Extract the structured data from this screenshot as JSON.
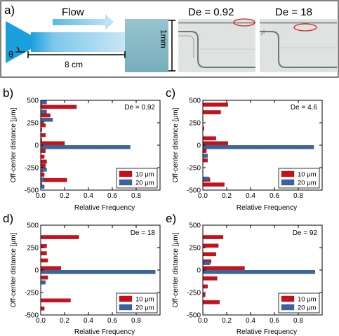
{
  "panel_a": {
    "label": "a)",
    "flow_label": "Flow",
    "angle_label": "θ",
    "length_label": "8 cm",
    "width_label": "1mm",
    "micro_titles": [
      "De = 0.92",
      "De = 18"
    ]
  },
  "colors": {
    "red": "#c8101a",
    "blue": "#2f5b94",
    "channel_light": "#c9e6f6",
    "channel_mid": "#7fc8ec",
    "channel_dark": "#1aa0dc",
    "expansion": "#86b7c4",
    "arrow": "#6ec3e9"
  },
  "legend": {
    "entries": [
      "10 μm",
      "20 μm"
    ]
  },
  "chart_data": [
    {
      "type": "bar",
      "orientation": "horizontal",
      "panel_label": "b)",
      "annotation": "De = 0.92",
      "xlabel": "Relative Frequency",
      "ylabel": "Off-center distance [μm]",
      "xlim": [
        0,
        1.0
      ],
      "ylim": [
        -500,
        500
      ],
      "xticks": [
        0,
        0.2,
        0.4,
        0.6,
        0.8
      ],
      "xtick_labels": [
        "0.0",
        "0.2",
        "0.4",
        "0.6",
        "0.8"
      ],
      "yticks": [
        500,
        250,
        0,
        -250,
        -500
      ],
      "ytick_labels": [
        "500",
        "250",
        "0",
        "-250",
        "-500"
      ],
      "legend_position": "bottom-right",
      "series": [
        {
          "name": "10 μm",
          "y": [
            450,
            405,
            350,
            310,
            255,
            200,
            150,
            90,
            35,
            0,
            -85,
            -150,
            -205,
            -250,
            -300,
            -350,
            -410,
            -460
          ],
          "values": [
            0.01,
            0.3,
            0.04,
            0.08,
            0.03,
            0.04,
            0.01,
            0.04,
            0.01,
            0.2,
            0.04,
            0.03,
            0.05,
            0.04,
            0.02,
            0.03,
            0.22,
            0.01
          ]
        },
        {
          "name": "20 μm",
          "y": [
            500,
            395,
            305,
            0,
            -250,
            -360,
            -440
          ],
          "values": [
            0.05,
            0.05,
            0.1,
            0.75,
            0.05,
            0.03,
            0.03
          ]
        }
      ]
    },
    {
      "type": "bar",
      "orientation": "horizontal",
      "panel_label": "c)",
      "annotation": "De = 4.6",
      "xlabel": "Relative Frequency",
      "ylabel": "Off-center distance [μm]",
      "xlim": [
        0,
        1.0
      ],
      "ylim": [
        -500,
        500
      ],
      "xticks": [
        0,
        0.2,
        0.4,
        0.6,
        0.8
      ],
      "xtick_labels": [
        "0.0",
        "0.2",
        "0.4",
        "0.6",
        "0.8"
      ],
      "yticks": [
        500,
        250,
        0,
        -250,
        -500
      ],
      "ytick_labels": [
        "500",
        "250",
        "0",
        "-250",
        "-500"
      ],
      "legend_position": "bottom-right",
      "series": [
        {
          "name": "10 μm",
          "y": [
            430,
            345,
            165,
            55,
            0,
            -85,
            -190,
            -405,
            -460
          ],
          "values": [
            0.21,
            0.15,
            0.01,
            0.11,
            0.21,
            0.03,
            0.04,
            0.06,
            0.18
          ]
        },
        {
          "name": "20 μm",
          "y": [
            0,
            -95,
            -350
          ],
          "values": [
            0.93,
            0.04,
            0.05
          ]
        }
      ]
    },
    {
      "type": "bar",
      "orientation": "horizontal",
      "panel_label": "d)",
      "annotation": "De = 18",
      "xlabel": "Relative Frequency",
      "ylabel": "Off-center distance [μm]",
      "xlim": [
        0,
        1.0
      ],
      "ylim": [
        -500,
        500
      ],
      "xticks": [
        0,
        0.2,
        0.4,
        0.6,
        0.8
      ],
      "xtick_labels": [
        "0.0",
        "0.2",
        "0.4",
        "0.6",
        "0.8"
      ],
      "yticks": [
        500,
        250,
        0,
        -250,
        -500
      ],
      "ytick_labels": [
        "500",
        "250",
        "0",
        "-250",
        "-500"
      ],
      "legend_position": "bottom-right",
      "series": [
        {
          "name": "10 μm",
          "y": [
            345,
            245,
            165,
            85,
            0,
            -105,
            -160,
            -360,
            -450
          ],
          "values": [
            0.32,
            0.05,
            0.05,
            0.06,
            0.17,
            0.06,
            0.02,
            0.25,
            0.03
          ]
        },
        {
          "name": "20 μm",
          "y": [
            0,
            -115
          ],
          "values": [
            0.96,
            0.04
          ]
        }
      ]
    },
    {
      "type": "bar",
      "orientation": "horizontal",
      "panel_label": "e)",
      "annotation": "De = 92",
      "xlabel": "Relative Frequency",
      "ylabel": "Off-center distance [μm]",
      "xlim": [
        0,
        1.0
      ],
      "ylim": [
        -500,
        500
      ],
      "xticks": [
        0,
        0.2,
        0.4,
        0.6,
        0.8
      ],
      "xtick_labels": [
        "0.0",
        "0.2",
        "0.4",
        "0.6",
        "0.8"
      ],
      "yticks": [
        500,
        250,
        0,
        -250,
        -500
      ],
      "ytick_labels": [
        "500",
        "250",
        "0",
        "-250",
        "-500"
      ],
      "legend_position": "bottom-right",
      "series": [
        {
          "name": "10 μm",
          "y": [
            345,
            250,
            155,
            75,
            0,
            -115,
            -205,
            -300,
            -380
          ],
          "values": [
            0.17,
            0.13,
            0.11,
            0.07,
            0.35,
            0.12,
            0.04,
            0.02,
            0.14
          ]
        },
        {
          "name": "20 μm",
          "y": [
            100,
            0
          ],
          "values": [
            0.06,
            0.94
          ]
        }
      ]
    }
  ]
}
